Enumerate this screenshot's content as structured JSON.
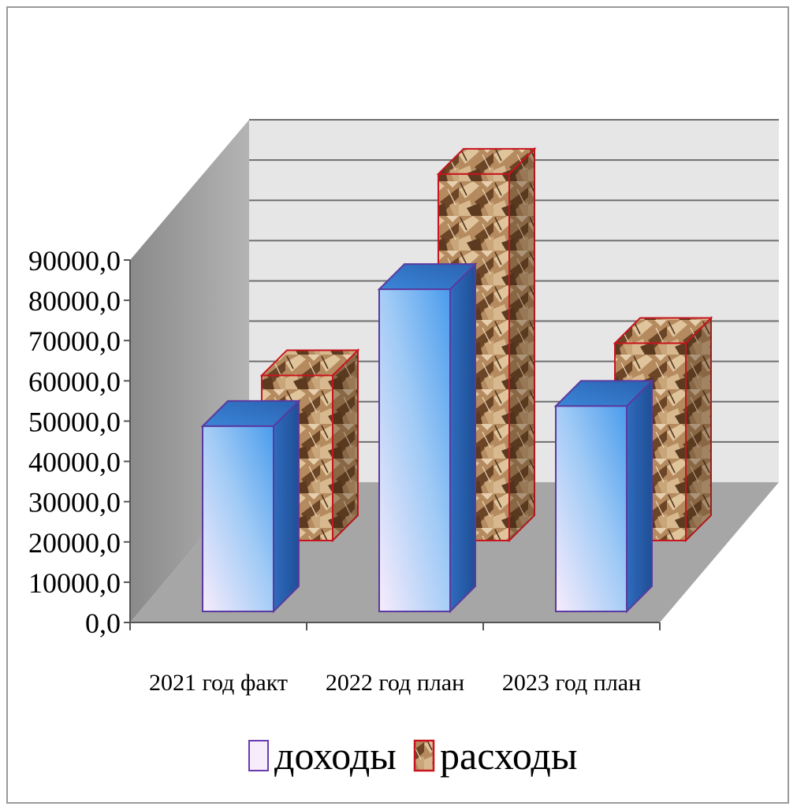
{
  "chart_data": {
    "type": "bar",
    "title": "",
    "xlabel": "",
    "ylabel": "",
    "categories": [
      "2021 год факт",
      "2022 год план",
      "2023 год план"
    ],
    "series": [
      {
        "name": "доходы",
        "values": [
          46000,
          80000,
          51000
        ]
      },
      {
        "name": "расходы",
        "values": [
          41000,
          91000,
          49000
        ]
      }
    ],
    "ylim": [
      0,
      90000
    ],
    "yticks": [
      "0,0",
      "10000,0",
      "20000,0",
      "30000,0",
      "40000,0",
      "50000,0",
      "60000,0",
      "70000,0",
      "80000,0",
      "90000,0"
    ],
    "grid": true,
    "legend_position": "bottom",
    "style": "3d clustered columns",
    "colors": {
      "dohody_front_light": "#f5e8fb",
      "dohody_front_dark": "#5aa8f0",
      "dohody_side": "#2a5fae",
      "dohody_top": "#3a84d6",
      "dohody_edge": "#5a3aa0",
      "rashody_texture_light": "#d6b48c",
      "rashody_texture_dark": "#5a3a22",
      "rashody_edge": "#c8141e",
      "back_wall": "#e8e8e8",
      "side_wall": "#9c9c9c",
      "floor": "#a6a6a6"
    }
  }
}
